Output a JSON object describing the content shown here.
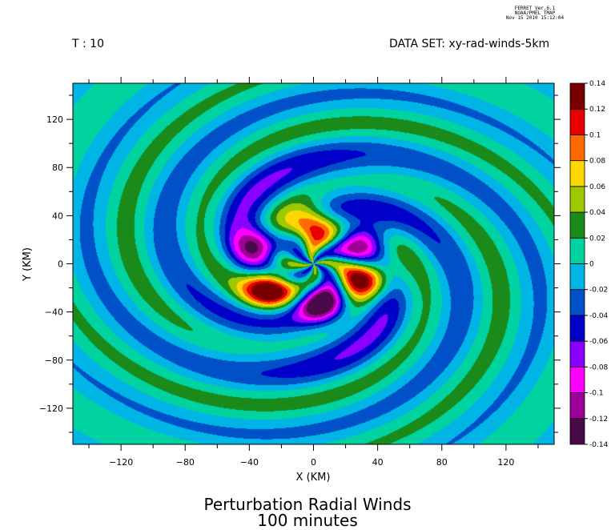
{
  "header": {
    "ferret_lines": [
      "FERRET  Ver.6.1",
      "NOAA/PMEL TMAP",
      "Nov 15 2010 15:12:04"
    ],
    "time_label": "T : 10",
    "dataset_label": "DATA SET: xy-rad-winds-5km"
  },
  "title": {
    "line1": "Perturbation Radial Winds",
    "line2": "100 minutes"
  },
  "chart_data": {
    "type": "heatmap",
    "xlabel": "X (KM)",
    "ylabel": "Y (KM)",
    "xlim": [
      -150,
      150
    ],
    "ylim": [
      -150,
      150
    ],
    "x_ticks": [
      -120,
      -80,
      -40,
      0,
      40,
      80,
      120
    ],
    "y_ticks": [
      -120,
      -80,
      -40,
      0,
      40,
      80,
      120
    ],
    "colorbar": {
      "levels": [
        -0.14,
        -0.12,
        -0.1,
        -0.08,
        -0.06,
        -0.04,
        -0.02,
        0,
        0.02,
        0.04,
        0.06,
        0.08,
        0.1,
        0.12,
        0.14
      ],
      "labels": [
        "-0.14",
        "-0.12",
        "-0.1",
        "-0.08",
        "-0.06",
        "-0.04",
        "-0.02",
        "0",
        "0.02",
        "0.04",
        "0.06",
        "0.08",
        "0.1",
        "0.12",
        "0.14"
      ],
      "colors": [
        "#4a0a4a",
        "#a0009a",
        "#ff00ff",
        "#8a00ff",
        "#0000c8",
        "#0050c8",
        "#00b4e6",
        "#00d2a0",
        "#1a8a1a",
        "#a0c800",
        "#ffd700",
        "#ff6a00",
        "#e60000",
        "#780000"
      ]
    },
    "lobes": [
      {
        "x": -3,
        "y": 32,
        "value": 0.14
      },
      {
        "x": -28,
        "y": -20,
        "value": 0.14
      },
      {
        "x": 33,
        "y": -13,
        "value": 0.13
      },
      {
        "x": 30,
        "y": 20,
        "value": -0.12
      },
      {
        "x": -32,
        "y": 15,
        "value": -0.12
      },
      {
        "x": 5,
        "y": -33,
        "value": -0.13
      }
    ],
    "pattern": {
      "arms": 4,
      "radial_wavenumber": 0.055,
      "swirl": 0.045
    }
  }
}
